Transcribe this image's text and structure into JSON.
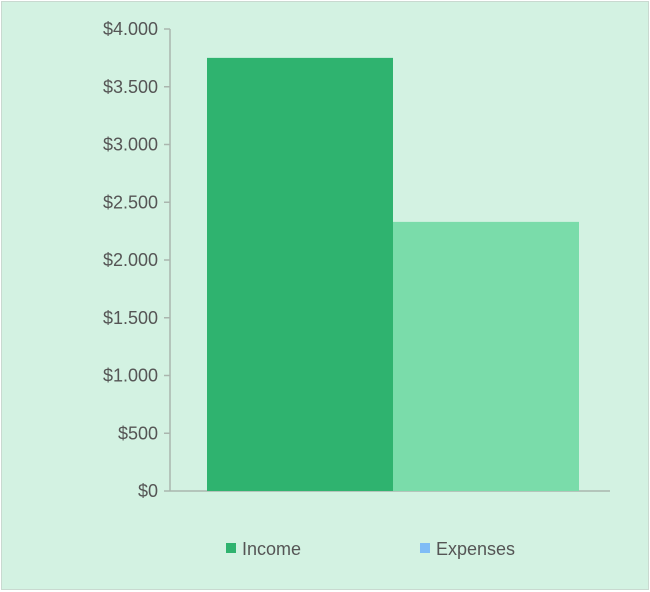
{
  "chart_data": {
    "type": "bar",
    "categories": [
      "Income",
      "Expenses"
    ],
    "series": [
      {
        "name": "Income",
        "values": [
          3750,
          2330
        ]
      }
    ],
    "bar_colors": [
      "#2fb36f",
      "#7adcaa"
    ],
    "y_ticks": [
      0,
      500,
      1000,
      1500,
      2000,
      2500,
      3000,
      3500,
      4000
    ],
    "y_tick_labels": [
      "$0",
      "$500",
      "$1.000",
      "$1.500",
      "$2.000",
      "$2.500",
      "$3.000",
      "$3.500",
      "$4.000"
    ],
    "ylim": [
      0,
      4000
    ],
    "grid": false,
    "legend_position": "bottom",
    "legend": [
      {
        "label": "Income",
        "color": "#2fb36f"
      },
      {
        "label": "Expenses",
        "color": "#7fbcf6"
      }
    ],
    "background": "#d3f2e2",
    "axis_color": "#aab6ae"
  }
}
